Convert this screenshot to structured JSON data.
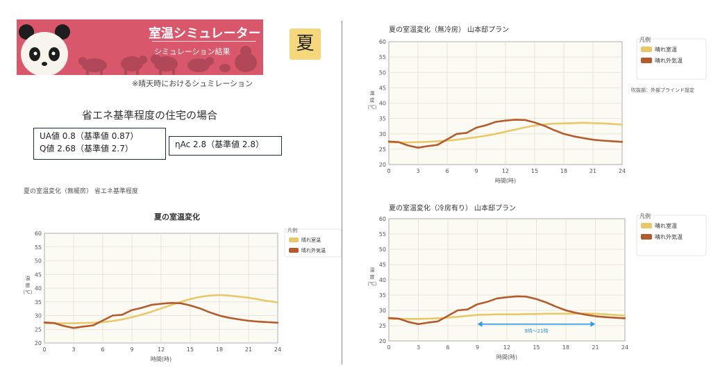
{
  "header": {
    "title": "室温シミュレーター",
    "subtitle": "シミュレーション結果",
    "season": "夏",
    "note": "※晴天時におけるシュミレーション"
  },
  "section": {
    "heading": "省エネ基準程度の住宅の場合",
    "values_line1": "UA値 0.8（基準値 0.87）",
    "values_line2": "Q値 2.68（基準値 2.7）",
    "eta_line": "ηAc 2.8（基準値 2.8）",
    "left_chart_caption": "夏の室温変化（無暖房）  省エネ基準程度"
  },
  "colors": {
    "banner": "#d9576b",
    "room": "#e9c86a",
    "outside": "#b55a2a",
    "arrow": "#2e9be6",
    "plot_bg": "#fcfbf3"
  },
  "chart_data": [
    {
      "type": "line",
      "title": "夏の室温変化",
      "xlabel": "時間(時)",
      "ylabel": "温度(℃)",
      "x": [
        0,
        1,
        2,
        3,
        4,
        5,
        6,
        7,
        8,
        9,
        10,
        11,
        12,
        13,
        14,
        15,
        16,
        17,
        18,
        19,
        20,
        21,
        22,
        23,
        24
      ],
      "xticks": [
        0,
        3,
        6,
        9,
        12,
        15,
        18,
        21,
        24
      ],
      "ylim": [
        20,
        60
      ],
      "yticks": [
        20,
        25,
        30,
        35,
        40,
        45,
        50,
        55,
        60
      ],
      "legend_title": "凡例",
      "legend_position": "top-right",
      "series": [
        {
          "name": "晴れ室温",
          "color": "#e9c86a",
          "values": [
            27.2,
            27.2,
            27.2,
            27.2,
            27.3,
            27.4,
            27.6,
            28.0,
            28.6,
            29.4,
            30.3,
            31.4,
            32.6,
            33.8,
            35.0,
            36.0,
            36.8,
            37.3,
            37.5,
            37.3,
            36.9,
            36.5,
            35.9,
            35.3,
            34.8
          ]
        },
        {
          "name": "晴れ外気温",
          "color": "#b55a2a",
          "values": [
            27.5,
            27.3,
            26.2,
            25.5,
            26.0,
            26.4,
            28.2,
            30.0,
            30.3,
            32.0,
            32.8,
            33.9,
            34.3,
            34.6,
            34.5,
            33.7,
            32.6,
            31.2,
            30.0,
            29.2,
            28.6,
            28.1,
            27.8,
            27.6,
            27.4
          ]
        }
      ]
    },
    {
      "type": "line",
      "title": "夏の室温変化（無冷房）  山本邸プラン",
      "xlabel": "時間(時)",
      "ylabel": "温度(℃)",
      "x": [
        0,
        1,
        2,
        3,
        4,
        5,
        6,
        7,
        8,
        9,
        10,
        11,
        12,
        13,
        14,
        15,
        16,
        17,
        18,
        19,
        20,
        21,
        22,
        23,
        24
      ],
      "xticks": [
        0,
        3,
        6,
        9,
        12,
        15,
        18,
        21,
        24
      ],
      "ylim": [
        20,
        60
      ],
      "yticks": [
        20,
        25,
        30,
        35,
        40,
        45,
        50,
        55,
        60
      ],
      "legend_title": "凡例",
      "legend_position": "top-right",
      "legend_note": "吹抜部：外部ブラインド設定",
      "series": [
        {
          "name": "晴れ室温",
          "color": "#e9c86a",
          "values": [
            27.2,
            27.2,
            27.2,
            27.3,
            27.4,
            27.6,
            27.8,
            28.1,
            28.5,
            28.9,
            29.4,
            30.0,
            30.7,
            31.4,
            32.1,
            32.7,
            33.1,
            33.3,
            33.4,
            33.5,
            33.6,
            33.5,
            33.4,
            33.2,
            33.0
          ]
        },
        {
          "name": "晴れ外気温",
          "color": "#b55a2a",
          "values": [
            27.5,
            27.3,
            26.2,
            25.5,
            26.0,
            26.4,
            28.2,
            30.0,
            30.3,
            32.0,
            32.8,
            33.9,
            34.3,
            34.6,
            34.5,
            33.7,
            32.6,
            31.2,
            30.0,
            29.2,
            28.6,
            28.1,
            27.8,
            27.6,
            27.4
          ]
        }
      ]
    },
    {
      "type": "line",
      "title": "夏の室温変化（冷房有り）  山本邸プラン",
      "xlabel": "時間(時)",
      "ylabel": "温度(℃)",
      "x": [
        0,
        1,
        2,
        3,
        4,
        5,
        6,
        7,
        8,
        9,
        10,
        11,
        12,
        13,
        14,
        15,
        16,
        17,
        18,
        19,
        20,
        21,
        22,
        23,
        24
      ],
      "xticks": [
        0,
        3,
        6,
        9,
        12,
        15,
        18,
        21,
        24
      ],
      "ylim": [
        20,
        60
      ],
      "yticks": [
        20,
        25,
        30,
        35,
        40,
        45,
        50,
        55,
        60
      ],
      "legend_title": "凡例",
      "legend_position": "top-right",
      "annotation": {
        "label": "9時～21時",
        "from": 9,
        "to": 21,
        "y": 25.5
      },
      "series": [
        {
          "name": "晴れ室温",
          "color": "#e9c86a",
          "values": [
            27.2,
            27.2,
            27.2,
            27.2,
            27.3,
            27.4,
            27.6,
            27.9,
            28.2,
            28.5,
            28.6,
            28.7,
            28.7,
            28.7,
            28.8,
            28.8,
            28.9,
            28.9,
            28.9,
            28.9,
            29.0,
            28.9,
            28.7,
            28.5,
            28.3
          ]
        },
        {
          "name": "晴れ外気温",
          "color": "#b55a2a",
          "values": [
            27.5,
            27.3,
            26.2,
            25.5,
            26.0,
            26.4,
            28.2,
            30.0,
            30.3,
            32.0,
            32.8,
            33.9,
            34.3,
            34.6,
            34.5,
            33.7,
            32.6,
            31.2,
            30.0,
            29.2,
            28.6,
            28.1,
            27.8,
            27.6,
            27.4
          ]
        }
      ]
    }
  ]
}
